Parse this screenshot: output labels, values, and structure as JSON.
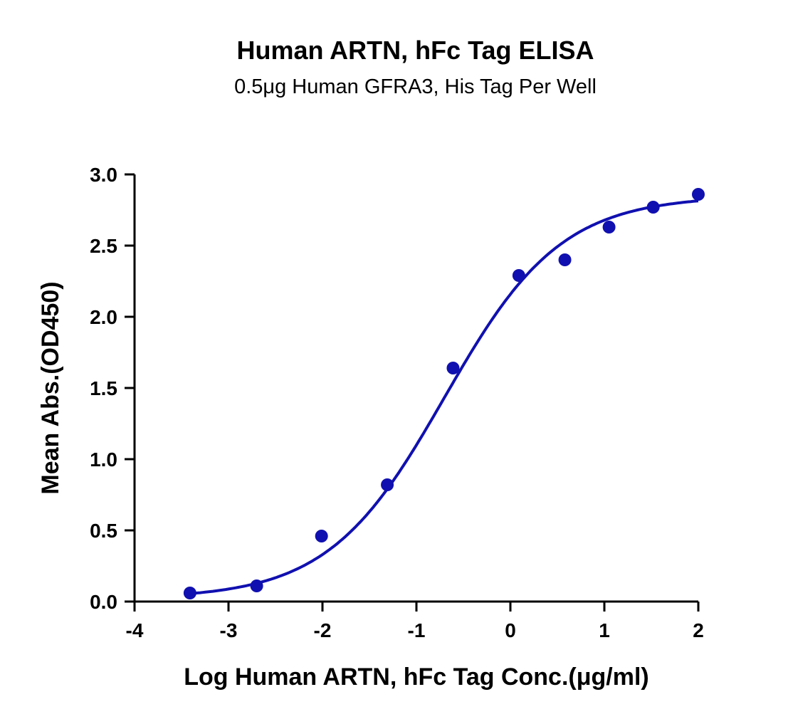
{
  "chart_data": {
    "type": "scatter",
    "title": "Human ARTN, hFc Tag ELISA",
    "subtitle": "0.5μg Human GFRA3, His Tag Per Well",
    "xlabel": "Log Human ARTN, hFc Tag Conc.(μg/ml)",
    "ylabel": "Mean Abs.(OD450)",
    "xlim": [
      -4,
      2
    ],
    "ylim": [
      0,
      3.0
    ],
    "xticks": [
      "-4",
      "-3",
      "-2",
      "-1",
      "0",
      "1",
      "2"
    ],
    "yticks": [
      "0.0",
      "0.5",
      "1.0",
      "1.5",
      "2.0",
      "2.5",
      "3.0"
    ],
    "grid": false,
    "color": "#1010b0",
    "series": [
      {
        "x": [
          -3.41,
          -2.7,
          -2.01,
          -1.31,
          -0.61,
          0.09,
          0.58,
          1.05,
          1.52,
          2.0
        ],
        "y": [
          0.06,
          0.11,
          0.46,
          0.82,
          1.64,
          2.29,
          2.4,
          2.63,
          2.77,
          2.86
        ],
        "fit": "sigmoidal curve"
      }
    ]
  }
}
